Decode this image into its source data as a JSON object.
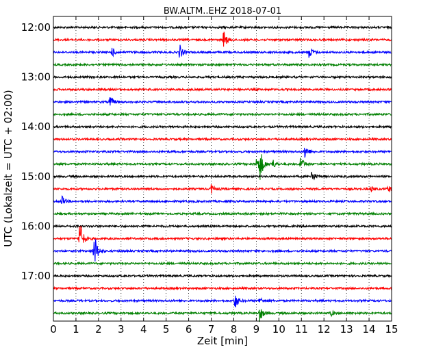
{
  "chart_data": {
    "type": "line",
    "title": "BW.ALTM..EHZ 2018-07-01",
    "xlabel": "Zeit  [min]",
    "ylabel": "UTC (Lokalzeit = UTC + 02:00)",
    "xlim": [
      0,
      15
    ],
    "x_ticks": [
      "0",
      "1",
      "2",
      "3",
      "4",
      "5",
      "6",
      "7",
      "8",
      "9",
      "10",
      "11",
      "12",
      "13",
      "14",
      "15"
    ],
    "y_ticks": [
      "12:00",
      "13:00",
      "14:00",
      "15:00",
      "16:00",
      "17:00"
    ],
    "grid": true,
    "grid_style": "dotted vertical at each minute",
    "trace_interval_min": 15,
    "trace_start": "12:00",
    "trace_colors": [
      "#000000",
      "#ff0000",
      "#0000ff",
      "#008000"
    ],
    "series": [
      {
        "start": "12:00",
        "color": "#000000",
        "events": []
      },
      {
        "start": "12:15",
        "color": "#ff0000",
        "events": [
          {
            "t": 7.55,
            "amp": 14
          }
        ]
      },
      {
        "start": "12:30",
        "color": "#0000ff",
        "events": [
          {
            "t": 2.6,
            "amp": 7
          },
          {
            "t": 5.6,
            "amp": 11
          },
          {
            "t": 11.35,
            "amp": 10
          }
        ]
      },
      {
        "start": "12:45",
        "color": "#008000",
        "events": []
      },
      {
        "start": "13:00",
        "color": "#000000",
        "events": []
      },
      {
        "start": "13:15",
        "color": "#ff0000",
        "events": []
      },
      {
        "start": "13:30",
        "color": "#0000ff",
        "events": [
          {
            "t": 2.5,
            "amp": 9
          }
        ]
      },
      {
        "start": "13:45",
        "color": "#008000",
        "events": []
      },
      {
        "start": "14:00",
        "color": "#000000",
        "events": []
      },
      {
        "start": "14:15",
        "color": "#ff0000",
        "events": []
      },
      {
        "start": "14:30",
        "color": "#0000ff",
        "events": [
          {
            "t": 11.15,
            "amp": 12
          }
        ]
      },
      {
        "start": "14:45",
        "color": "#008000",
        "events": [
          {
            "t": 9.0,
            "amp": 10
          },
          {
            "t": 9.15,
            "amp": 25
          },
          {
            "t": 9.7,
            "amp": 8
          },
          {
            "t": 10.95,
            "amp": 12
          }
        ]
      },
      {
        "start": "15:00",
        "color": "#000000",
        "events": [
          {
            "t": 11.45,
            "amp": 9
          }
        ]
      },
      {
        "start": "15:15",
        "color": "#ff0000",
        "events": [
          {
            "t": 7.0,
            "amp": 7
          },
          {
            "t": 14.1,
            "amp": 4
          },
          {
            "t": 14.85,
            "amp": 6
          }
        ]
      },
      {
        "start": "15:30",
        "color": "#0000ff",
        "events": [
          {
            "t": 0.35,
            "amp": 9
          }
        ]
      },
      {
        "start": "15:45",
        "color": "#008000",
        "events": []
      },
      {
        "start": "16:00",
        "color": "#000000",
        "events": []
      },
      {
        "start": "16:15",
        "color": "#ff0000",
        "events": [
          {
            "t": 1.15,
            "amp": 33
          }
        ]
      },
      {
        "start": "16:30",
        "color": "#0000ff",
        "events": [
          {
            "t": 1.8,
            "amp": 30
          }
        ]
      },
      {
        "start": "16:45",
        "color": "#008000",
        "events": []
      },
      {
        "start": "17:00",
        "color": "#000000",
        "events": []
      },
      {
        "start": "17:15",
        "color": "#ff0000",
        "events": []
      },
      {
        "start": "17:30",
        "color": "#0000ff",
        "events": [
          {
            "t": 8.05,
            "amp": 12
          },
          {
            "t": 9.15,
            "amp": 5
          }
        ]
      },
      {
        "start": "17:45",
        "color": "#008000",
        "events": [
          {
            "t": 9.15,
            "amp": 12
          },
          {
            "t": 12.3,
            "amp": 4
          }
        ]
      }
    ]
  }
}
